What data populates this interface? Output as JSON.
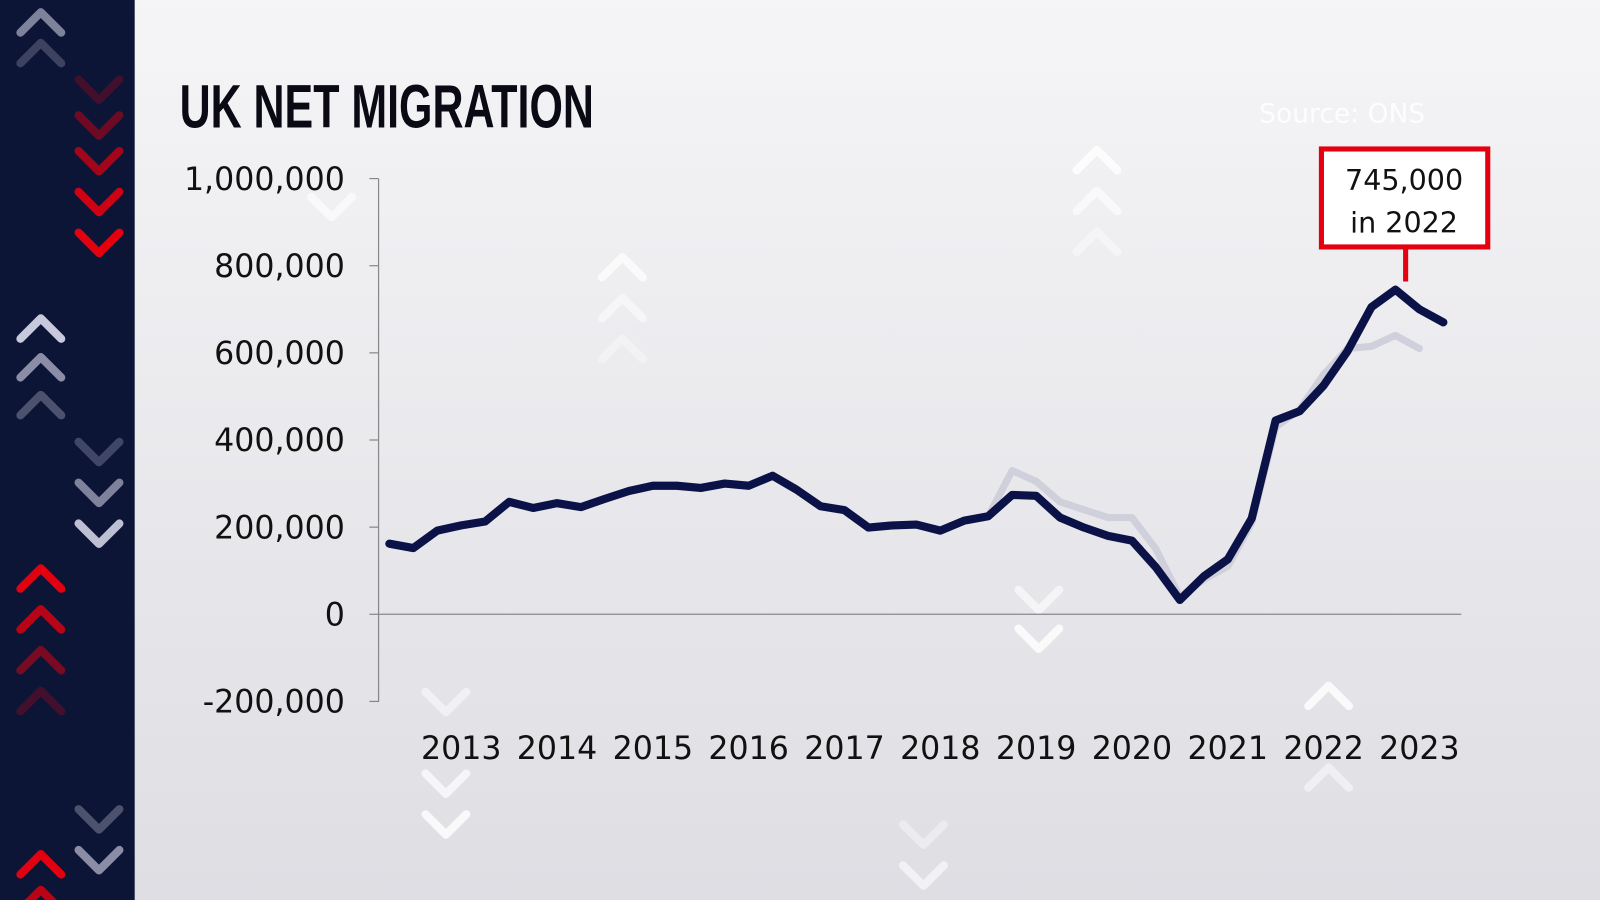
{
  "chart_data": {
    "type": "line",
    "title": "UK NET MIGRATION",
    "source": "Source: ONS",
    "xlabel": "",
    "ylabel": "",
    "ylim": [
      -200000,
      1000000
    ],
    "y_ticks": [
      1000000,
      800000,
      600000,
      400000,
      200000,
      0,
      -200000
    ],
    "y_tick_labels": [
      "1,000,000",
      "800,000",
      "600,000",
      "400,000",
      "200,000",
      "0",
      "-200,000"
    ],
    "x_tick_labels": [
      "2013",
      "2014",
      "2015",
      "2016",
      "2017",
      "2018",
      "2019",
      "2020",
      "2021",
      "2022",
      "2023"
    ],
    "x_ticks": [
      2013,
      2014,
      2015,
      2016,
      2017,
      2018,
      2019,
      2020,
      2021,
      2022,
      2023
    ],
    "grid": false,
    "series": [
      {
        "color": "#0b1248",
        "x": [
          2012.25,
          2012.5,
          2012.75,
          2013,
          2013.25,
          2013.5,
          2013.75,
          2014,
          2014.25,
          2014.5,
          2014.75,
          2015,
          2015.25,
          2015.5,
          2015.75,
          2016,
          2016.25,
          2016.5,
          2016.75,
          2017,
          2017.25,
          2017.5,
          2017.75,
          2018,
          2018.25,
          2018.5,
          2018.75,
          2019,
          2019.25,
          2019.5,
          2019.75,
          2020,
          2020.25,
          2020.5,
          2020.75,
          2021,
          2021.25,
          2021.5,
          2021.75,
          2022,
          2022.25,
          2022.5,
          2022.75,
          2023,
          2023.25
        ],
        "values": [
          162000,
          152000,
          192000,
          204000,
          213000,
          258000,
          244000,
          255000,
          246000,
          265000,
          283000,
          295000,
          295000,
          290000,
          300000,
          295000,
          318000,
          286000,
          248000,
          239000,
          199000,
          204000,
          206000,
          192000,
          215000,
          225000,
          274000,
          272000,
          222000,
          199000,
          180000,
          169000,
          108000,
          33000,
          87000,
          126000,
          220000,
          445000,
          466000,
          525000,
          604000,
          705000,
          745000,
          700000,
          670000
        ]
      },
      {
        "color": "#cfd0dc",
        "x": [
          2018.5,
          2018.75,
          2019,
          2019.25,
          2019.5,
          2019.75,
          2020,
          2020.25,
          2020.5,
          2020.75,
          2021,
          2021.25,
          2021.5,
          2021.75,
          2022,
          2022.25,
          2022.5,
          2022.75,
          2023
        ],
        "values": [
          225000,
          330000,
          305000,
          258000,
          240000,
          222000,
          222000,
          150000,
          40000,
          80000,
          110000,
          210000,
          430000,
          470000,
          550000,
          610000,
          615000,
          640000,
          610000
        ]
      }
    ],
    "annotation": {
      "line1": "745,000",
      "line2": "in 2022",
      "x": 2022.75,
      "value": 745000,
      "border_color": "#e3000f"
    }
  },
  "colors": {
    "sidebar": "#0d1537",
    "accent_red": "#e3000f",
    "line": "#0b1248"
  }
}
